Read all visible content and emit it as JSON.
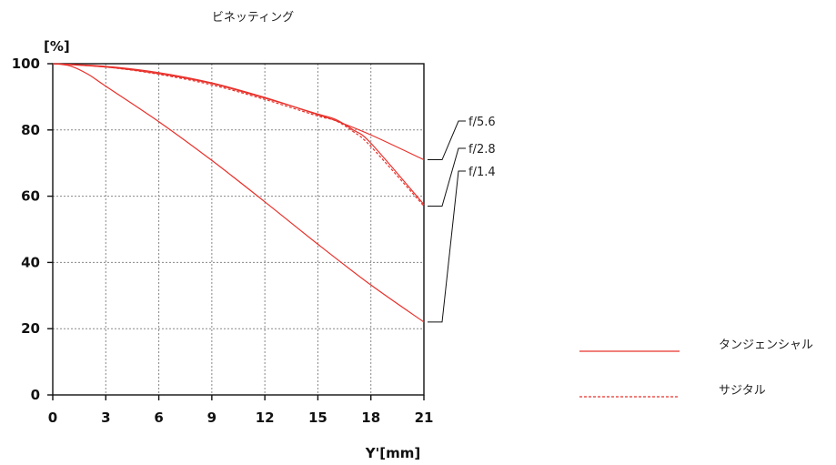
{
  "chart_data": {
    "type": "line",
    "title": "ビネッティング",
    "ylabel": "[%]",
    "xlabel": "Y'[mm]",
    "xlim": [
      0,
      21
    ],
    "ylim": [
      0,
      100
    ],
    "xticks": [
      "0",
      "3",
      "6",
      "9",
      "12",
      "15",
      "18",
      "21"
    ],
    "yticks": [
      "0",
      "20",
      "40",
      "60",
      "80",
      "100"
    ],
    "grid": true,
    "line_color": "#e8302a",
    "series": [
      {
        "name": "f/5.6",
        "style": "solid",
        "x": [
          0,
          3,
          6,
          9,
          12,
          15,
          16,
          18,
          21
        ],
        "y": [
          100,
          99.2,
          97.3,
          94.2,
          89.8,
          84.6,
          82.8,
          78.5,
          71
        ]
      },
      {
        "name": "f/5.6",
        "style": "dashed",
        "x": [
          0,
          3,
          6,
          9,
          12,
          15,
          16,
          17,
          18,
          21
        ],
        "y": [
          100,
          99,
          96.8,
          93.6,
          89.2,
          84.2,
          82.8,
          79.5,
          75,
          57
        ]
      },
      {
        "name": "f/2.8",
        "style": "solid",
        "x": [
          0,
          3,
          6,
          9,
          12,
          15,
          16,
          17,
          18,
          21
        ],
        "y": [
          100,
          99,
          97,
          94,
          89.6,
          84.8,
          83.2,
          80,
          76,
          57.5
        ]
      },
      {
        "name": "f/1.4",
        "style": "solid",
        "x": [
          0,
          1,
          2,
          3,
          6,
          9,
          12,
          15,
          18,
          21
        ],
        "y": [
          100,
          99.3,
          96.8,
          93.2,
          82.5,
          70.8,
          58.3,
          45.5,
          33.2,
          22
        ]
      }
    ],
    "annotations": [
      {
        "label": "f/5.6",
        "y": 71
      },
      {
        "label": "f/2.8",
        "y": 57
      },
      {
        "label": "f/1.4",
        "y": 22
      }
    ],
    "legend": {
      "placement": "bottom-right",
      "items": [
        {
          "label": "タンジェンシャル",
          "style": "solid"
        },
        {
          "label": "サジタル",
          "style": "dashed"
        }
      ]
    }
  }
}
